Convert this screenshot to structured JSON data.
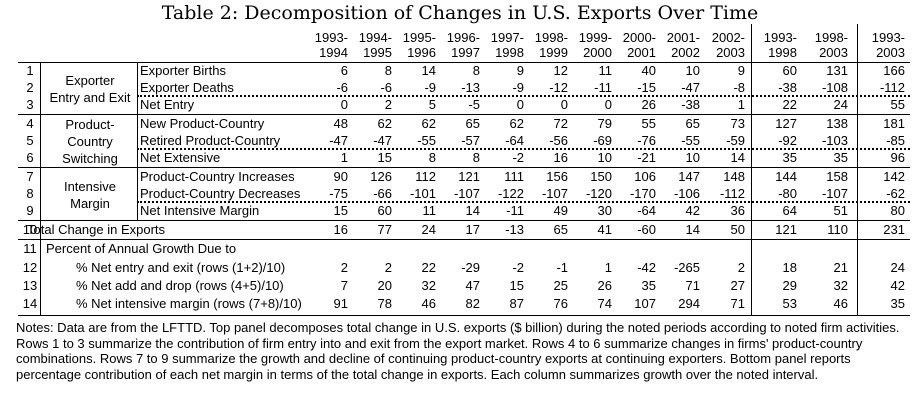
{
  "title": "Table 2: Decomposition of Changes in U.S. Exports Over Time",
  "columns": [
    [
      "1993-",
      "1994"
    ],
    [
      "1994-",
      "1995"
    ],
    [
      "1995-",
      "1996"
    ],
    [
      "1996-",
      "1997"
    ],
    [
      "1997-",
      "1998"
    ],
    [
      "1998-",
      "1999"
    ],
    [
      "1999-",
      "2000"
    ],
    [
      "2000-",
      "2001"
    ],
    [
      "2001-",
      "2002"
    ],
    [
      "2002-",
      "2003"
    ],
    [
      "1993-",
      "1998"
    ],
    [
      "1998-",
      "2003"
    ],
    [
      "1993-",
      "2003"
    ]
  ],
  "groups": [
    "Exporter\nEntry and Exit",
    "Product-\nCountry\nSwitching",
    "Intensive\nMargin"
  ],
  "percent_header": "Percent of Annual Growth Due to",
  "rows": [
    {
      "num": "1",
      "label": "Exporter Births",
      "values": [
        "6",
        "8",
        "14",
        "8",
        "9",
        "12",
        "11",
        "40",
        "10",
        "9",
        "60",
        "131",
        "166"
      ]
    },
    {
      "num": "2",
      "label": "Exporter Deaths",
      "values": [
        "-6",
        "-6",
        "-9",
        "-13",
        "-9",
        "-12",
        "-11",
        "-15",
        "-47",
        "-8",
        "-38",
        "-108",
        "-112"
      ]
    },
    {
      "num": "3",
      "label": "Net Entry",
      "values": [
        "0",
        "2",
        "5",
        "-5",
        "0",
        "0",
        "0",
        "26",
        "-38",
        "1",
        "22",
        "24",
        "55"
      ]
    },
    {
      "num": "4",
      "label": "New Product-Country",
      "values": [
        "48",
        "62",
        "62",
        "65",
        "62",
        "72",
        "79",
        "55",
        "65",
        "73",
        "127",
        "138",
        "181"
      ]
    },
    {
      "num": "5",
      "label": "Retired Product-Country",
      "values": [
        "-47",
        "-47",
        "-55",
        "-57",
        "-64",
        "-56",
        "-69",
        "-76",
        "-55",
        "-59",
        "-92",
        "-103",
        "-85"
      ]
    },
    {
      "num": "6",
      "label": "Net Extensive",
      "values": [
        "1",
        "15",
        "8",
        "8",
        "-2",
        "16",
        "10",
        "-21",
        "10",
        "14",
        "35",
        "35",
        "96"
      ]
    },
    {
      "num": "7",
      "label": "Product-Country Increases",
      "values": [
        "90",
        "126",
        "112",
        "121",
        "111",
        "156",
        "150",
        "106",
        "147",
        "148",
        "144",
        "158",
        "142"
      ]
    },
    {
      "num": "8",
      "label": "Product-Country Decreases",
      "values": [
        "-75",
        "-66",
        "-101",
        "-107",
        "-122",
        "-107",
        "-120",
        "-170",
        "-106",
        "-112",
        "-80",
        "-107",
        "-62"
      ]
    },
    {
      "num": "9",
      "label": "Net Intensive Margin",
      "values": [
        "15",
        "60",
        "11",
        "14",
        "-11",
        "49",
        "30",
        "-64",
        "42",
        "36",
        "64",
        "51",
        "80"
      ]
    },
    {
      "num": "10",
      "label": "Total Change in Exports",
      "values": [
        "16",
        "77",
        "24",
        "17",
        "-13",
        "65",
        "41",
        "-60",
        "14",
        "50",
        "121",
        "110",
        "231"
      ]
    },
    {
      "num": "11",
      "label": "",
      "values": []
    },
    {
      "num": "12",
      "label": "% Net entry and exit  (rows (1+2)/10)",
      "values": [
        "2",
        "2",
        "22",
        "-29",
        "-2",
        "-1",
        "1",
        "-42",
        "-265",
        "2",
        "18",
        "21",
        "24"
      ]
    },
    {
      "num": "13",
      "label": "% Net add and drop (rows (4+5)/10)",
      "values": [
        "7",
        "20",
        "32",
        "47",
        "15",
        "25",
        "26",
        "35",
        "71",
        "27",
        "29",
        "32",
        "42"
      ]
    },
    {
      "num": "14",
      "label": "% Net intensive margin (rows (7+8)/10)",
      "values": [
        "91",
        "78",
        "46",
        "82",
        "87",
        "76",
        "74",
        "107",
        "294",
        "71",
        "53",
        "46",
        "35"
      ]
    }
  ],
  "notes": "Notes: Data are from the LFTTD. Top panel decomposes total change in U.S. exports ($ billion) during the noted periods according to noted firm activities. Rows 1 to 3 summarize the contribution of firm entry into and exit from the export market. Rows 4 to 6 summarize changes in firms' product-country combinations. Rows 7 to 9 summarize the growth and decline of continuing product-country exports at continuing exporters. Bottom panel reports percentage contribution of each net margin in terms of the total change in exports. Each column summarizes growth over the noted interval."
}
